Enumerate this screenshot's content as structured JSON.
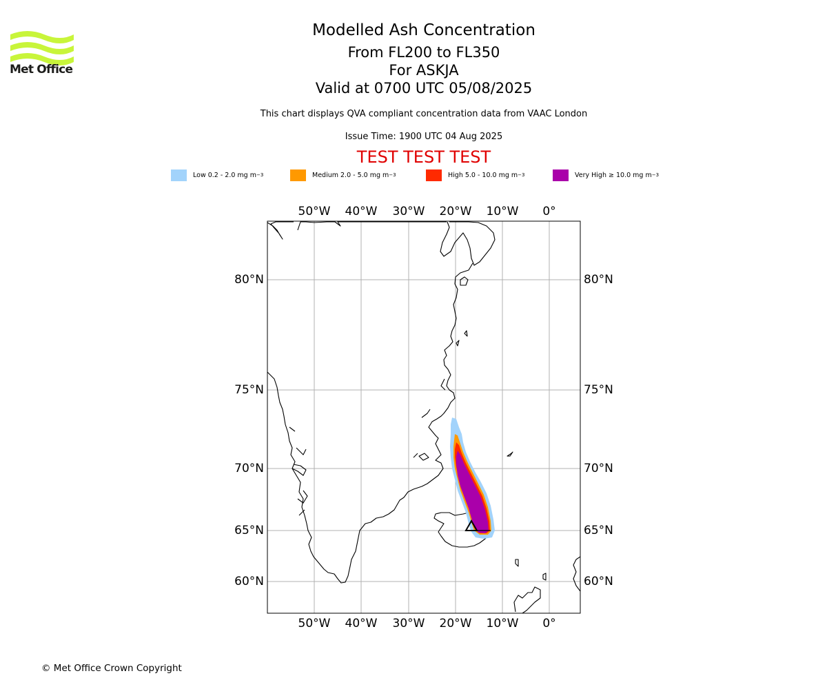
{
  "header": {
    "logo_text": "Met Office",
    "title": "Modelled Ash Concentration",
    "levels": "From FL200 to FL350",
    "volcano": "For ASKJA",
    "valid": "Valid at 0700 UTC 05/08/2025",
    "description": "This chart displays QVA compliant concentration data from VAAC London",
    "issue_time": "Issue Time: 1900 UTC 04 Aug 2025",
    "test_banner": "TEST TEST TEST"
  },
  "legend": [
    {
      "label": "Low 0.2 - 2.0 mg m",
      "exp": "−3",
      "color": "#a2d3fb"
    },
    {
      "label": "Medium 2.0 - 5.0 mg m",
      "exp": "−3",
      "color": "#ff9900"
    },
    {
      "label": "High 5.0 - 10.0 mg m",
      "exp": "−3",
      "color": "#ff2a00"
    },
    {
      "label": "Very High  ≥  10.0 mg m",
      "exp": "−3",
      "color": "#aa00aa"
    }
  ],
  "map": {
    "lon_ticks": [
      "50°W",
      "40°W",
      "30°W",
      "20°W",
      "10°W",
      "0°"
    ],
    "lat_ticks": [
      "80°N",
      "75°N",
      "70°N",
      "65°N",
      "60°N"
    ],
    "volcano_marker": "triangle"
  },
  "footer": {
    "copyright": "© Met Office Crown Copyright"
  }
}
